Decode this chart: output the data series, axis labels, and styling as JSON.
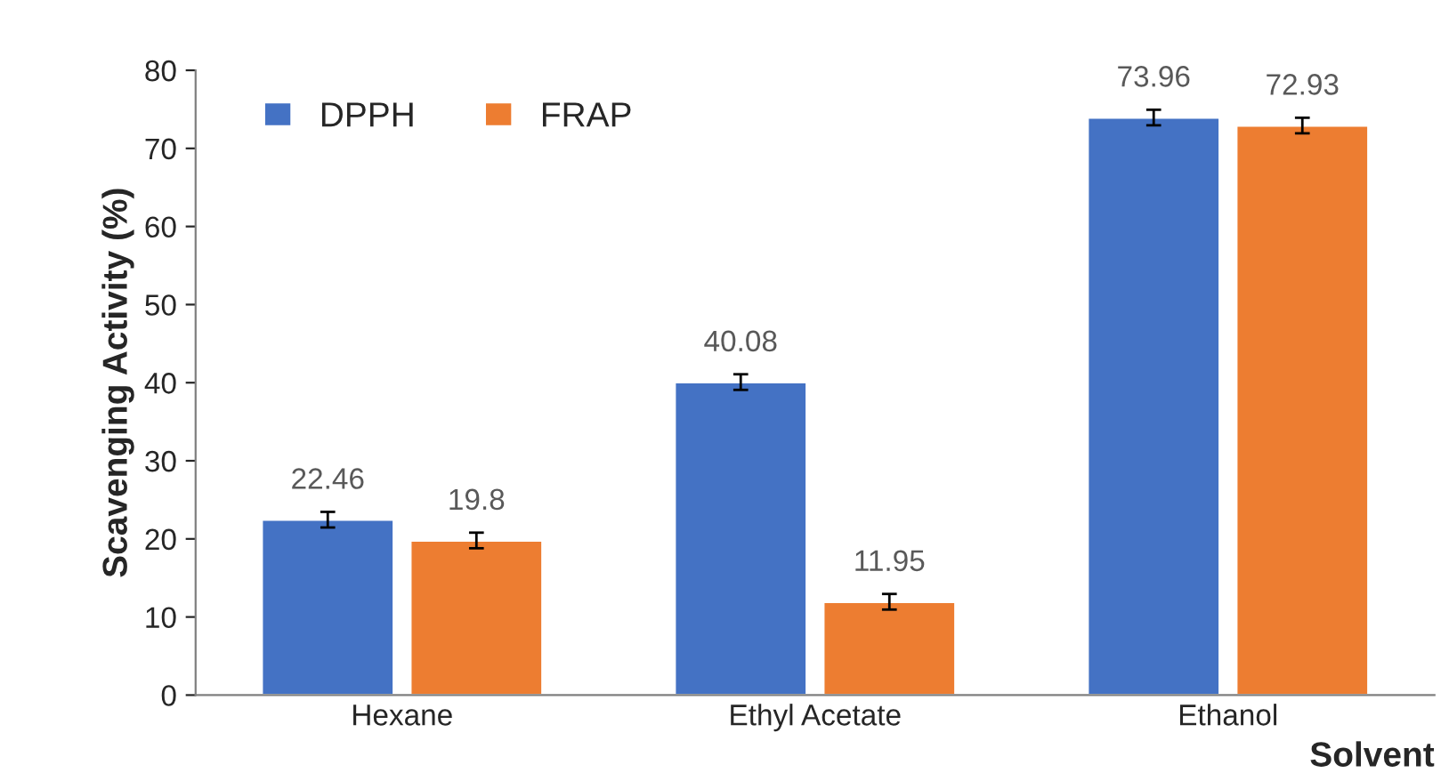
{
  "chart_data": {
    "type": "bar",
    "xlabel": "Solvent",
    "ylabel": "Scavenging Activity (%)",
    "categories": [
      "Hexane",
      "Ethyl Acetate",
      "Ethanol"
    ],
    "series": [
      {
        "name": "DPPH",
        "color": "#4472c4",
        "values": [
          22.46,
          40.08,
          73.96
        ],
        "errors": [
          1,
          1,
          1
        ]
      },
      {
        "name": "FRAP",
        "color": "#ed7d31",
        "values": [
          19.8,
          11.95,
          72.93
        ],
        "errors": [
          1,
          1,
          1
        ]
      }
    ],
    "ylim": [
      0,
      80
    ],
    "yticks": [
      0,
      10,
      20,
      30,
      40,
      50,
      60,
      70,
      80
    ],
    "grid": false,
    "legend": "top left",
    "data_labels": true
  }
}
